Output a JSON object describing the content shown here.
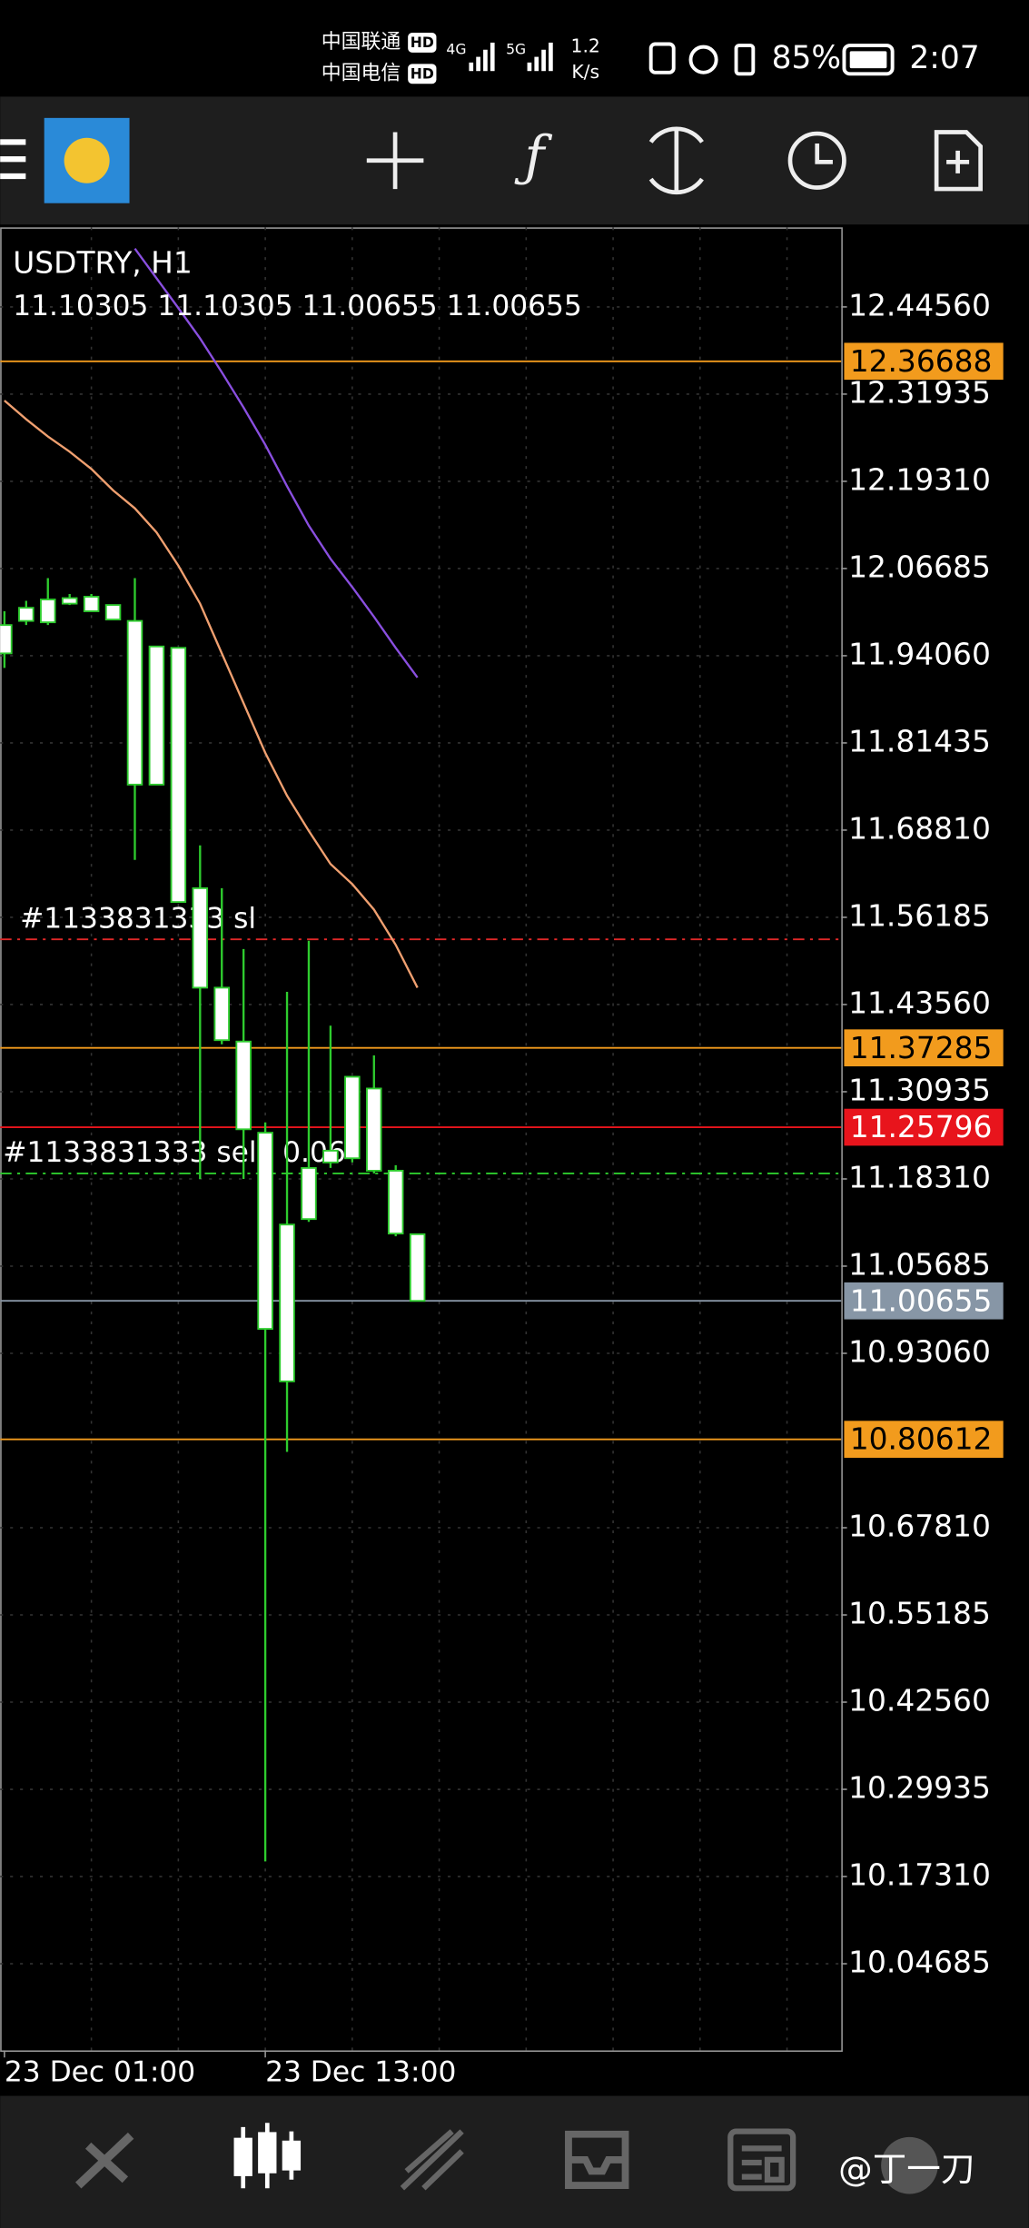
{
  "status_bar": {
    "carrier_1": "中国联通",
    "carrier_2": "中国电信",
    "hd": "HD",
    "net_1": "4G",
    "net_2": "5G",
    "speed": "1.2",
    "speed_unit": "K/s",
    "battery": "85%",
    "time": "2:07"
  },
  "chart_data": {
    "type": "candlestick",
    "title": "USDTRY, H1",
    "ohlc_text": "11.10305 11.10305 11.00655 11.00655",
    "categories": [
      "23 Dec 01:00",
      null,
      null,
      null,
      null,
      null,
      null,
      null,
      null,
      null,
      null,
      null,
      "23 Dec 13:00",
      null,
      null,
      null,
      null,
      null,
      null,
      null
    ],
    "open": [
      11.944,
      11.991,
      11.989,
      12.024,
      12.026,
      12.014,
      11.991,
      11.754,
      11.952,
      11.604,
      11.46,
      11.382,
      11.25,
      10.89,
      11.125,
      11.207,
      11.213,
      11.314,
      11.195,
      11.10305
    ],
    "high": [
      12.005,
      12.02,
      12.053,
      12.03,
      12.03,
      12.014,
      12.053,
      11.954,
      11.952,
      11.666,
      11.604,
      11.516,
      11.265,
      11.454,
      11.528,
      11.405,
      11.331,
      11.362,
      11.203,
      11.10305
    ],
    "low": [
      11.923,
      11.985,
      11.985,
      12.014,
      12.005,
      11.993,
      11.645,
      11.754,
      11.584,
      11.183,
      11.378,
      11.183,
      10.195,
      10.788,
      11.121,
      11.199,
      11.207,
      11.191,
      11.1,
      11.00655
    ],
    "close": [
      11.985,
      12.01,
      12.022,
      12.016,
      12.005,
      11.993,
      11.754,
      11.954,
      11.584,
      11.46,
      11.384,
      11.255,
      10.966,
      11.117,
      11.199,
      11.224,
      11.331,
      11.195,
      11.104,
      11.00655
    ],
    "candle_color": "#2ecc2e",
    "body_fill": "#ffffff",
    "series": [
      {
        "color": "#8a4fe0",
        "values": [
          null,
          null,
          null,
          null,
          null,
          null,
          12.53,
          12.487,
          12.444,
          12.4,
          12.351,
          12.3,
          12.246,
          12.186,
          12.129,
          12.081,
          12.04,
          11.997,
          11.952,
          11.909
        ]
      },
      {
        "color": "#f0a070",
        "values": [
          12.31,
          12.283,
          12.258,
          12.236,
          12.211,
          12.18,
          12.154,
          12.119,
          12.071,
          12.016,
          11.944,
          11.872,
          11.8,
          11.738,
          11.687,
          11.639,
          11.61,
          11.573,
          11.522,
          11.46
        ]
      }
    ],
    "ylim": [
      9.9214,
      12.5608
    ],
    "yticks": [
      {
        "value": 12.4456,
        "label": "12.44560"
      },
      12.31935,
      {
        "value": 12.1931,
        "label": "12.19310"
      },
      12.06685,
      {
        "value": 11.9406,
        "label": "11.94060"
      },
      11.81435,
      {
        "value": 11.6881,
        "label": "11.68810"
      },
      11.56185,
      {
        "value": 11.4356,
        "label": "11.43560"
      },
      11.30935,
      {
        "value": 11.1831,
        "label": "11.18310"
      },
      11.05685,
      {
        "value": 10.9306,
        "label": "10.93060"
      },
      {
        "value": 10.6781,
        "label": "10.67810"
      },
      10.55185,
      {
        "value": 10.4256,
        "label": "10.42560"
      },
      10.29935,
      {
        "value": 10.1731,
        "label": "10.17310"
      },
      10.04685
    ],
    "grid": true,
    "levels": [
      {
        "value": 12.36688,
        "color": "#f29b1d",
        "text_color": "#000000"
      },
      {
        "value": 11.37285,
        "color": "#f29b1d",
        "text_color": "#000000"
      },
      {
        "value": 11.25796,
        "color": "#e8141c",
        "text_color": "#ffffff"
      },
      {
        "value": 11.00655,
        "color": "#8796a6",
        "text_color": "#ffffff"
      },
      {
        "value": 10.80612,
        "color": "#f29b1d",
        "text_color": "#000000"
      }
    ],
    "orders": [
      {
        "value": 11.53,
        "label": "#1133831333 sl",
        "color": "#e02828"
      },
      {
        "value": 11.191,
        "label": "#1133831333 sell, 0.06",
        "color": "#2ecc2e"
      }
    ]
  },
  "watermark": "@丁一刀"
}
